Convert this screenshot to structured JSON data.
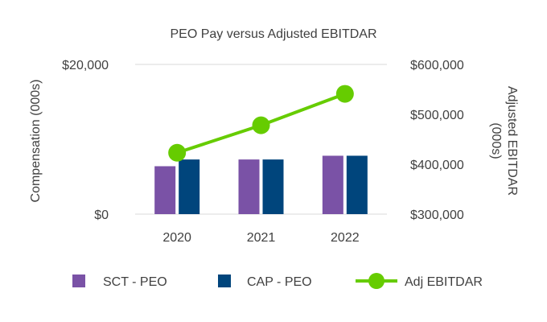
{
  "chart_data": {
    "type": "bar",
    "title": "PEO Pay versus Adjusted EBITDAR",
    "categories": [
      "2020",
      "2021",
      "2022"
    ],
    "ylabel": "Compensation (000s)",
    "y2label_lines": [
      "Adjusted EBITDAR",
      "(000s)"
    ],
    "ylim": [
      0,
      20000
    ],
    "y2lim": [
      300000,
      600000
    ],
    "yticks": [
      0,
      20000
    ],
    "ytick_labels": [
      "$0",
      "$20,000"
    ],
    "y2ticks": [
      300000,
      400000,
      500000,
      600000
    ],
    "y2tick_labels": [
      "$300,000",
      "$400,000",
      "$500,000",
      "$600,000"
    ],
    "series": [
      {
        "name": "SCT - PEO",
        "kind": "bar",
        "axis": "left",
        "color": "#7a52a6",
        "values": [
          6400,
          7300,
          7800
        ]
      },
      {
        "name": "CAP - PEO",
        "kind": "bar",
        "axis": "left",
        "color": "#00457c",
        "values": [
          7300,
          7300,
          7800
        ]
      },
      {
        "name": "Adj EBITDAR",
        "kind": "line",
        "axis": "right",
        "color": "#66cc00",
        "values": [
          423000,
          478000,
          541000
        ]
      }
    ],
    "legend_position": "bottom",
    "grid": "horizontal"
  }
}
